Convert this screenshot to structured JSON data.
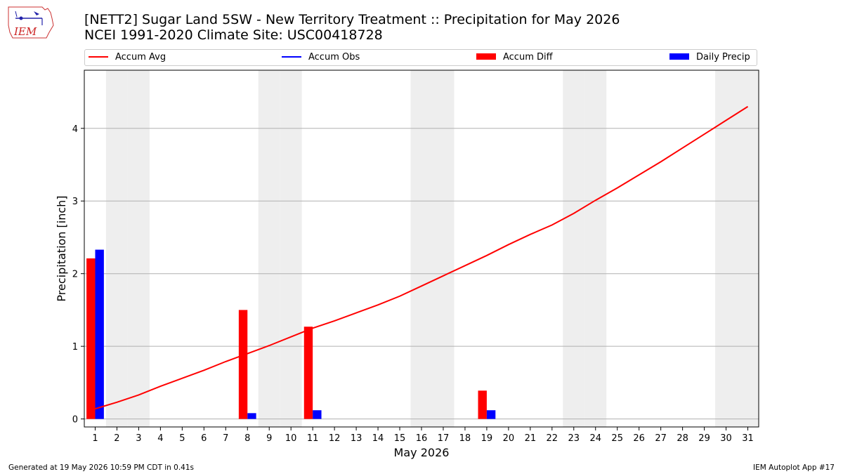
{
  "header": {
    "title_line1": "[NETT2] Sugar Land 5SW - New Territory Treatment :: Precipitation for May 2026",
    "title_line2": "NCEI 1991-2020 Climate Site: USC00418728"
  },
  "logo": {
    "text": "IEM",
    "icon": "iem-iowa-logo"
  },
  "footer": {
    "left": "Generated at 19 May 2026 10:59 PM CDT in 0.41s",
    "right": "IEM Autoplot App #17"
  },
  "colors": {
    "accum_avg": "#ff0000",
    "accum_obs": "#0000ff",
    "accum_diff": "#ff0000",
    "daily_precip": "#0000ff",
    "weekend_band": "#eeeeee",
    "grid": "#b0b0b0"
  },
  "chart_data": {
    "type": "bar",
    "xlabel": "May 2026",
    "ylabel": "Precipitation [inch]",
    "xlim": [
      0.5,
      31.5
    ],
    "ylim": [
      -0.11,
      4.8
    ],
    "yticks": [
      0,
      1,
      2,
      3,
      4
    ],
    "grid": "y",
    "legend_position": "top",
    "legend": [
      "Accum Avg",
      "Accum Obs",
      "Accum Diff",
      "Daily Precip"
    ],
    "weekend_days": [
      2,
      3,
      9,
      10,
      16,
      17,
      23,
      24,
      30,
      31
    ],
    "days": [
      1,
      2,
      3,
      4,
      5,
      6,
      7,
      8,
      9,
      10,
      11,
      12,
      13,
      14,
      15,
      16,
      17,
      18,
      19,
      20,
      21,
      22,
      23,
      24,
      25,
      26,
      27,
      28,
      29,
      30,
      31
    ],
    "series": [
      {
        "name": "Accum Avg",
        "kind": "line",
        "values": [
          0.14,
          0.23,
          0.33,
          0.45,
          0.56,
          0.67,
          0.79,
          0.9,
          1.01,
          1.13,
          1.25,
          1.35,
          1.46,
          1.57,
          1.69,
          1.83,
          1.97,
          2.11,
          2.25,
          2.4,
          2.54,
          2.67,
          2.83,
          3.01,
          3.18,
          3.36,
          3.54,
          3.73,
          3.92,
          4.11,
          4.3
        ]
      },
      {
        "name": "Accum Obs",
        "kind": "line",
        "values": []
      },
      {
        "name": "Accum Diff",
        "kind": "bar",
        "values": [
          2.21,
          null,
          null,
          null,
          null,
          null,
          null,
          1.5,
          null,
          null,
          1.27,
          null,
          null,
          null,
          null,
          null,
          null,
          null,
          0.39,
          null,
          null,
          null,
          null,
          null,
          null,
          null,
          null,
          null,
          null,
          null,
          null
        ]
      },
      {
        "name": "Daily Precip",
        "kind": "bar",
        "values": [
          2.33,
          null,
          null,
          null,
          null,
          null,
          null,
          0.08,
          null,
          null,
          0.12,
          null,
          null,
          null,
          null,
          null,
          null,
          null,
          0.12,
          null,
          null,
          null,
          null,
          null,
          null,
          null,
          null,
          null,
          null,
          null,
          null
        ]
      }
    ]
  }
}
